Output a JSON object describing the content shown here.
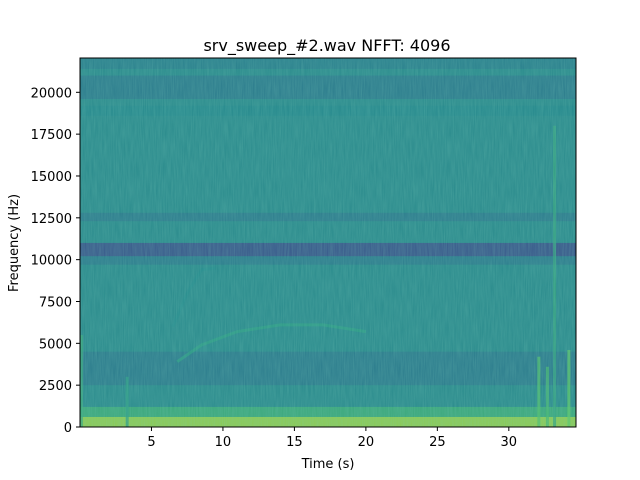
{
  "figure": {
    "title": "srv_sweep_#2.wav  NFFT: 4096"
  },
  "chart_data": {
    "type": "heatmap",
    "title": "srv_sweep_#2.wav  NFFT: 4096",
    "xlabel": "Time (s)",
    "ylabel": "Frequency (Hz)",
    "xlim": [
      0,
      34.7
    ],
    "ylim": [
      0,
      22050
    ],
    "x_ticks": [
      5,
      10,
      15,
      20,
      25,
      30
    ],
    "x_tick_labels": [
      "5",
      "10",
      "15",
      "20",
      "25",
      "30"
    ],
    "y_ticks": [
      0,
      2500,
      5000,
      7500,
      10000,
      12500,
      15000,
      17500,
      20000
    ],
    "y_tick_labels": [
      "0",
      "2500",
      "5000",
      "7500",
      "10000",
      "12500",
      "15000",
      "17500",
      "20000"
    ],
    "colormap": "viridis",
    "background_color": "#2a8a8c",
    "colors": {
      "low_energy": "#2a7d8e",
      "mid_energy": "#23898e",
      "high_energy": "#35b779",
      "peak_energy": "#b5de2b"
    },
    "horizontal_bands": [
      {
        "freq_low": 21400,
        "freq_high": 22050,
        "level": 0.42
      },
      {
        "freq_low": 19600,
        "freq_high": 21000,
        "level": 0.4
      },
      {
        "freq_low": 18600,
        "freq_high": 19200,
        "level": 0.46
      },
      {
        "freq_low": 12300,
        "freq_high": 12800,
        "level": 0.4
      },
      {
        "freq_low": 10200,
        "freq_high": 11000,
        "level": 0.24
      },
      {
        "freq_low": 9700,
        "freq_high": 10200,
        "level": 0.4
      },
      {
        "freq_low": 2500,
        "freq_high": 4500,
        "level": 0.4
      },
      {
        "freq_low": 600,
        "freq_high": 1200,
        "level": 0.62
      },
      {
        "freq_low": 0,
        "freq_high": 600,
        "level": 0.85
      }
    ],
    "sweep_traces": [
      {
        "points": [
          [
            6.8,
            3900
          ],
          [
            8.5,
            4900
          ],
          [
            11,
            5700
          ],
          [
            14,
            6100
          ],
          [
            17,
            6100
          ],
          [
            20,
            5700
          ]
        ],
        "level": 0.55
      },
      {
        "points": [
          [
            6.5,
            6000
          ],
          [
            7.5,
            8000
          ],
          [
            8.5,
            9400
          ],
          [
            9.5,
            9500
          ]
        ],
        "level": 0.47
      }
    ],
    "transients": [
      {
        "time": 0.1,
        "freq_high": 5500,
        "level": 0.6
      },
      {
        "time": 3.3,
        "freq_high": 3000,
        "level": 0.55
      },
      {
        "time": 32.1,
        "freq_high": 4200,
        "level": 0.7
      },
      {
        "time": 32.7,
        "freq_high": 3600,
        "level": 0.66
      },
      {
        "time": 33.2,
        "freq_high": 18000,
        "level": 0.58
      },
      {
        "time": 34.2,
        "freq_high": 4600,
        "level": 0.74
      }
    ]
  }
}
